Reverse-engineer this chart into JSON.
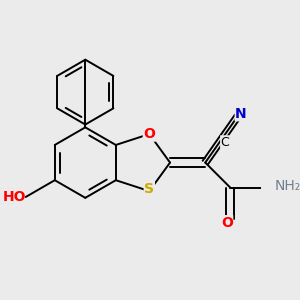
{
  "background_color": "#ebebeb",
  "atom_colors": {
    "C": "#000000",
    "N": "#0000cd",
    "O": "#ff0000",
    "S": "#ccaa00",
    "H": "#708090"
  },
  "bond_color": "#000000",
  "bond_width": 1.4,
  "font_size": 10
}
